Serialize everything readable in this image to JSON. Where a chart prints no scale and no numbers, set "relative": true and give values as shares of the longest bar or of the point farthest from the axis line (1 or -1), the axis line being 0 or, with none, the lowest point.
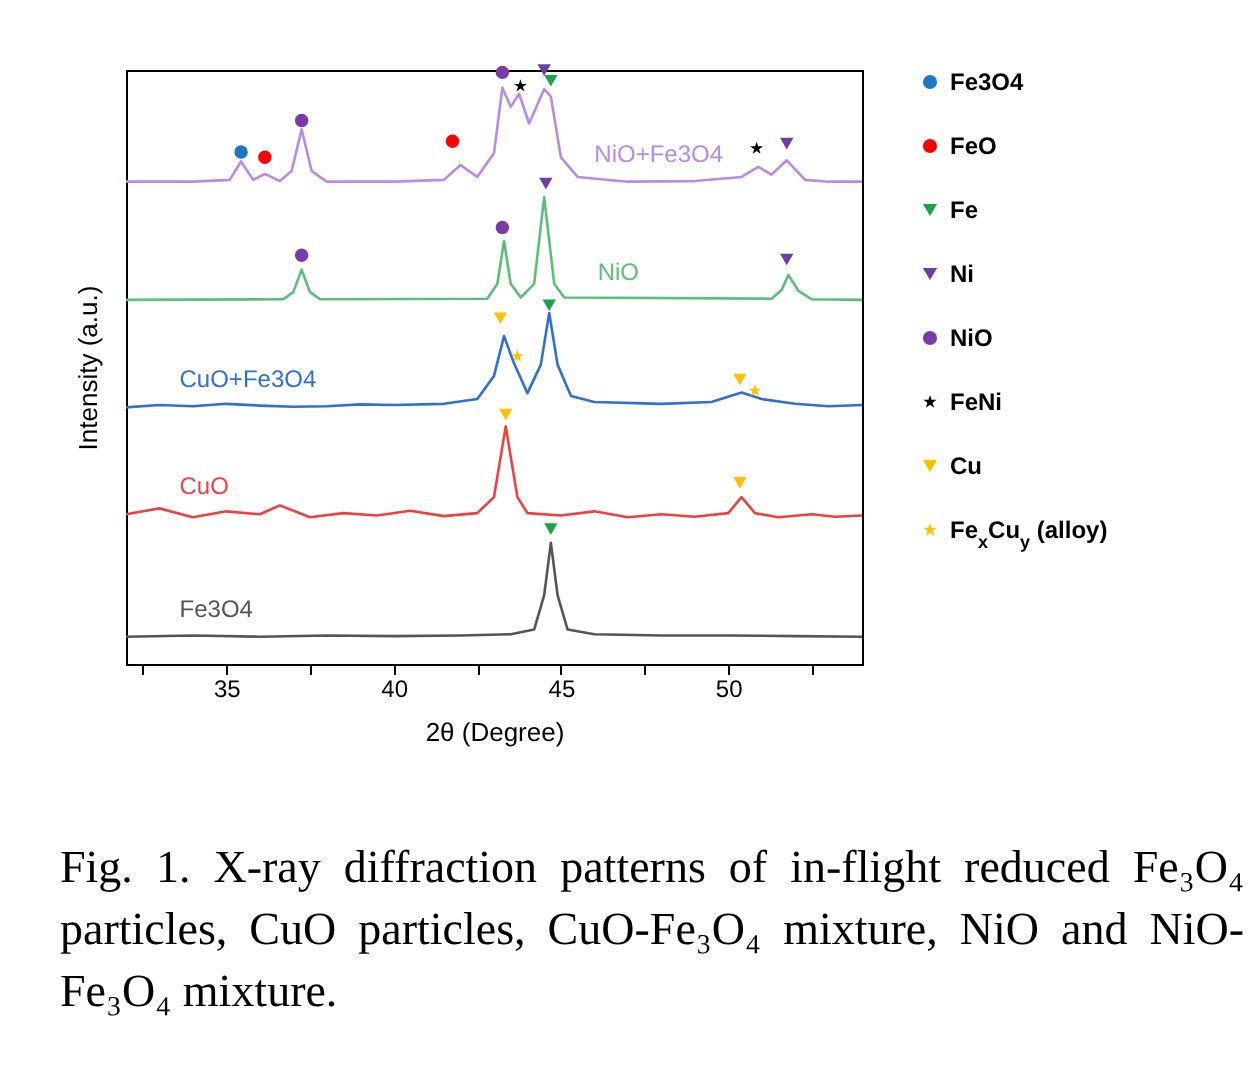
{
  "chart_data": {
    "type": "line",
    "relative": true,
    "xlabel": "2θ (Degree)",
    "ylabel": "Intensity (a.u.)",
    "xlim": [
      32,
      54
    ],
    "xticks": [
      {
        "value": 32.5,
        "label": null
      },
      35,
      {
        "value": 37.5,
        "label": null
      },
      40,
      {
        "value": 42.5,
        "label": null
      },
      45,
      {
        "value": 47.5,
        "label": null
      },
      50,
      {
        "value": 52.5,
        "label": null
      }
    ],
    "legend": "right",
    "annotations": [
      "Fig. 1. X-ray diffraction patterns of in-flight reduced Fe₃O₄ particles, CuO particles, CuO-Fe₃O₄ mixture, NiO and NiO-Fe₃O₄ mixture."
    ],
    "series": [
      {
        "name": "NiO+Fe3O4",
        "color": "#b98ae6",
        "x": [
          32,
          34,
          35.1,
          35.44,
          35.8,
          36.15,
          36.6,
          36.95,
          37.25,
          37.55,
          38,
          40,
          41.5,
          42.0,
          42.5,
          43.0,
          43.25,
          43.5,
          43.75,
          44.05,
          44.5,
          44.7,
          45.0,
          45.5,
          47,
          49,
          50.4,
          50.9,
          51.3,
          51.75,
          52.3,
          53,
          54
        ],
        "values": [
          0.812,
          0.812,
          0.815,
          0.846,
          0.815,
          0.825,
          0.813,
          0.83,
          0.9,
          0.83,
          0.812,
          0.812,
          0.815,
          0.84,
          0.82,
          0.86,
          0.97,
          0.938,
          0.96,
          0.91,
          0.968,
          0.955,
          0.853,
          0.82,
          0.812,
          0.813,
          0.82,
          0.837,
          0.824,
          0.848,
          0.815,
          0.812,
          0.812
        ]
      },
      {
        "name": "NiO",
        "color": "#5bbf7a",
        "x": [
          32,
          36.7,
          37.0,
          37.25,
          37.5,
          37.8,
          42.8,
          43.1,
          43.3,
          43.5,
          43.8,
          44.2,
          44.5,
          44.8,
          45.1,
          51.3,
          51.6,
          51.8,
          52.1,
          52.5,
          54
        ],
        "values": [
          0.613,
          0.614,
          0.626,
          0.664,
          0.626,
          0.614,
          0.615,
          0.64,
          0.712,
          0.64,
          0.617,
          0.64,
          0.786,
          0.64,
          0.617,
          0.615,
          0.63,
          0.655,
          0.628,
          0.614,
          0.613
        ]
      },
      {
        "name": "CuO+Fe3O4",
        "color": "#2f6fd8",
        "x": [
          32,
          33,
          34,
          35,
          36,
          37,
          38,
          39,
          40,
          41.5,
          42.5,
          43.0,
          43.3,
          43.6,
          44.0,
          44.4,
          44.65,
          44.9,
          45.3,
          46,
          48,
          49.5,
          50.4,
          51,
          52,
          53,
          54
        ],
        "values": [
          0.432,
          0.436,
          0.434,
          0.438,
          0.435,
          0.433,
          0.434,
          0.437,
          0.436,
          0.438,
          0.446,
          0.485,
          0.552,
          0.506,
          0.456,
          0.504,
          0.591,
          0.504,
          0.451,
          0.441,
          0.438,
          0.441,
          0.457,
          0.446,
          0.438,
          0.434,
          0.436
        ]
      },
      {
        "name": "CuO",
        "color": "#ef4040",
        "x": [
          32,
          33,
          34,
          35,
          36,
          36.6,
          37.5,
          38.5,
          39.5,
          40.5,
          41.5,
          42.5,
          43.0,
          43.35,
          43.7,
          44,
          45,
          46,
          47,
          48,
          49,
          50,
          50.4,
          50.8,
          51.5,
          52.5,
          53.2,
          54
        ],
        "values": [
          0.252,
          0.262,
          0.247,
          0.257,
          0.252,
          0.267,
          0.247,
          0.254,
          0.25,
          0.258,
          0.249,
          0.254,
          0.281,
          0.4,
          0.281,
          0.254,
          0.25,
          0.257,
          0.247,
          0.252,
          0.248,
          0.254,
          0.281,
          0.254,
          0.247,
          0.252,
          0.248,
          0.25
        ]
      },
      {
        "name": "Fe3O4",
        "color": "#555555",
        "x": [
          32,
          34,
          36,
          38,
          40,
          42,
          43.5,
          44.2,
          44.5,
          44.7,
          44.9,
          45.2,
          46,
          48,
          50,
          52,
          54
        ],
        "values": [
          0.046,
          0.048,
          0.046,
          0.048,
          0.047,
          0.048,
          0.05,
          0.058,
          0.116,
          0.204,
          0.116,
          0.058,
          0.05,
          0.048,
          0.048,
          0.047,
          0.046
        ]
      },
      {
        "name": "Fe3O4",
        "type": "scatter",
        "marker": "circle",
        "color": "#1f77c4",
        "x": [
          35.44
        ],
        "values": [
          0.862
        ]
      },
      {
        "name": "FeO",
        "type": "scatter",
        "marker": "circle",
        "color": "#ff0000",
        "x": [
          36.15,
          41.76
        ],
        "values": [
          0.853,
          0.88
        ]
      },
      {
        "name": "Fe",
        "type": "scatter",
        "marker": "triangle",
        "color": "#1aa34a",
        "x": [
          44.7,
          44.65,
          44.7
        ],
        "values": [
          0.982,
          0.604,
          0.227
        ]
      },
      {
        "name": "Ni",
        "type": "scatter",
        "marker": "triangle",
        "color": "#6a3da8",
        "x": [
          44.5,
          51.75,
          44.55,
          51.75
        ],
        "values": [
          1.0,
          0.876,
          0.809,
          0.681
        ]
      },
      {
        "name": "NiO",
        "type": "scatter",
        "marker": "circle",
        "color": "#7a3aa8",
        "x": [
          37.25,
          43.25,
          37.25,
          43.25
        ],
        "values": [
          0.915,
          0.996,
          0.688,
          0.735
        ]
      },
      {
        "name": "FeNi",
        "type": "scatter",
        "marker": "star",
        "color": "#000000",
        "x": [
          43.79,
          50.85
        ],
        "values": [
          0.973,
          0.868
        ]
      },
      {
        "name": "Cu",
        "type": "scatter",
        "marker": "triangle",
        "color": "#ffc000",
        "x": [
          43.19,
          50.35,
          43.35,
          50.35
        ],
        "values": [
          0.582,
          0.479,
          0.42,
          0.305
        ]
      },
      {
        "name": "Fe$_{x}$Cu$_{y}$ (alloy)",
        "type": "scatter",
        "marker": "star",
        "color": "#ffc000",
        "x": [
          43.7,
          50.8
        ],
        "values": [
          0.518,
          0.46
        ]
      }
    ]
  }
}
